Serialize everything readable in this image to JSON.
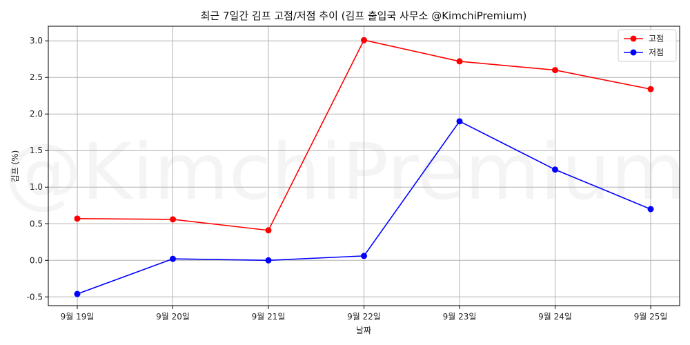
{
  "chart_data": {
    "type": "line",
    "title": "최근 7일간 김프 고점/저점 추이 (김프 출입국 사무소 @KimchiPremium)",
    "xlabel": "날짜",
    "ylabel": "김프 (%)",
    "categories": [
      "9월 19일",
      "9월 20일",
      "9월 21일",
      "9월 22일",
      "9월 23일",
      "9월 24일",
      "9월 25일"
    ],
    "ylim": [
      -0.62,
      3.2
    ],
    "yticks": [
      -0.5,
      0.0,
      0.5,
      1.0,
      1.5,
      2.0,
      2.5,
      3.0
    ],
    "ytick_labels": [
      "-0.5",
      "0.0",
      "0.5",
      "1.0",
      "1.5",
      "2.0",
      "2.5",
      "3.0"
    ],
    "grid": true,
    "legend_position": "top-right",
    "watermark": "@KimchiPremium",
    "series": [
      {
        "name": "고점",
        "color": "#ff0000",
        "values": [
          0.57,
          0.56,
          0.41,
          3.01,
          2.72,
          2.6,
          2.34
        ]
      },
      {
        "name": "저점",
        "color": "#0000ff",
        "values": [
          -0.46,
          0.02,
          0.0,
          0.06,
          1.9,
          1.24,
          0.7
        ]
      }
    ]
  }
}
